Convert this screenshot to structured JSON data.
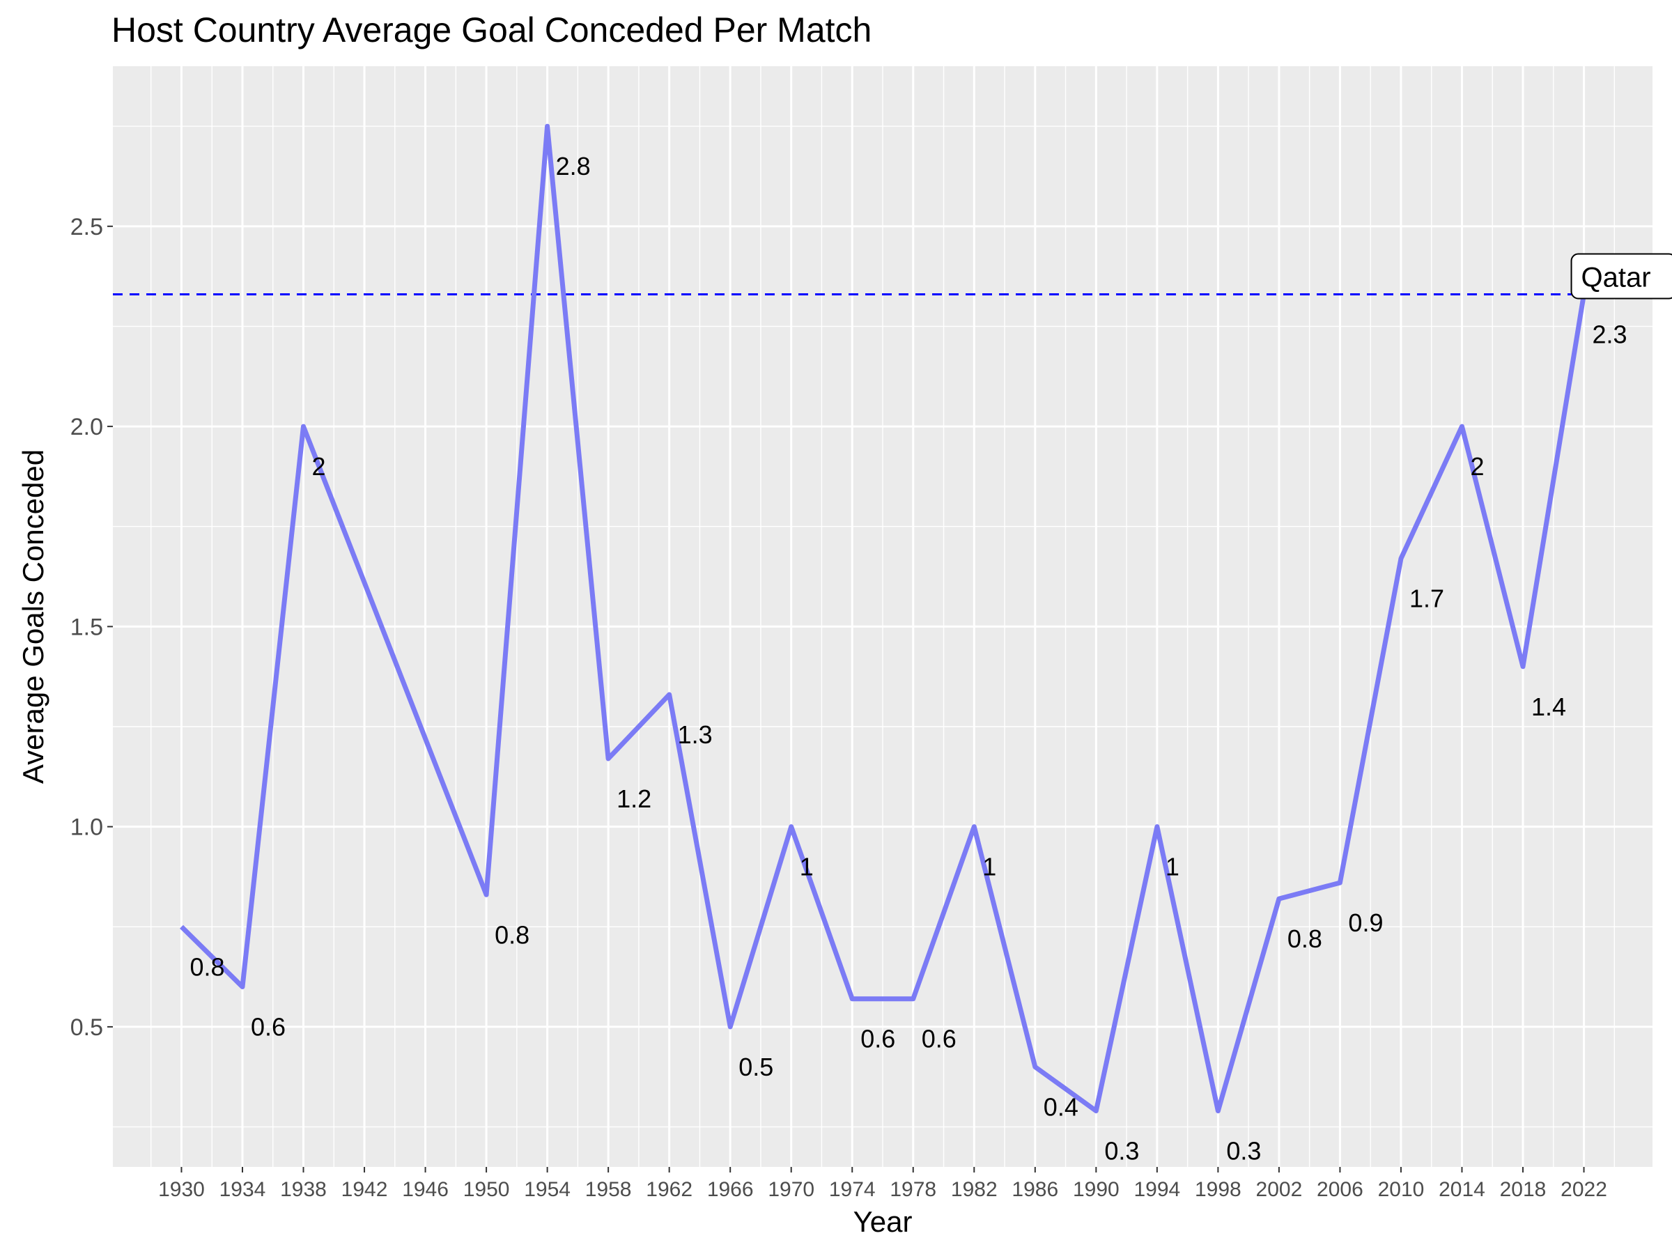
{
  "chart_data": {
    "type": "line",
    "title": "Host Country Average Goal Conceded Per Match",
    "xlabel": "Year",
    "ylabel": "Average Goals Conceded",
    "x": [
      1930,
      1934,
      1938,
      1950,
      1954,
      1958,
      1962,
      1966,
      1970,
      1974,
      1978,
      1982,
      1986,
      1990,
      1994,
      1998,
      2002,
      2006,
      2010,
      2014,
      2018,
      2022
    ],
    "y": [
      0.75,
      0.6,
      2.0,
      0.83,
      2.75,
      1.17,
      1.33,
      0.5,
      1.0,
      0.57,
      0.57,
      1.0,
      0.4,
      0.29,
      1.0,
      0.29,
      0.82,
      0.86,
      1.67,
      2.0,
      1.4,
      2.33
    ],
    "point_labels": [
      "0.8",
      "0.6",
      "2",
      "0.8",
      "2.8",
      "1.2",
      "1.3",
      "0.5",
      "1",
      "0.6",
      "0.6",
      "1",
      "0.4",
      "0.3",
      "1",
      "0.3",
      "0.8",
      "0.9",
      "1.7",
      "2",
      "1.4",
      "2.3"
    ],
    "x_ticks": [
      1930,
      1934,
      1938,
      1942,
      1946,
      1950,
      1954,
      1958,
      1962,
      1966,
      1970,
      1974,
      1978,
      1982,
      1986,
      1990,
      1994,
      1998,
      2002,
      2006,
      2010,
      2014,
      2018,
      2022
    ],
    "y_ticks": [
      "0.5",
      "1.0",
      "1.5",
      "2.0",
      "2.5"
    ],
    "xlim": [
      1925.5,
      2026.5
    ],
    "ylim": [
      0.15,
      2.9
    ],
    "reference_line": {
      "y": 2.33,
      "color": "#0000ff",
      "style": "dashed"
    },
    "annotation": {
      "text": "Qatar",
      "x": 2022,
      "y": 2.33
    },
    "line_color": "#7b7bf5",
    "grid": true,
    "panel_background": "#ebebeb",
    "legend": "none"
  }
}
